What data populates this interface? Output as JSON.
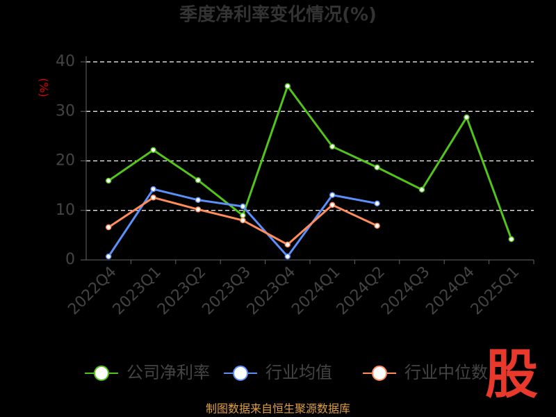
{
  "chart_data": {
    "type": "line",
    "title": "季度净利率变化情况(%)",
    "y_label": "(%)",
    "categories": [
      "2022Q4",
      "2023Q1",
      "2023Q2",
      "2023Q3",
      "2023Q4",
      "2024Q1",
      "2024Q2",
      "2024Q3",
      "2024Q4",
      "2025Q1"
    ],
    "series": [
      {
        "name": "公司净利率",
        "color": "#52c41a",
        "values": [
          16.0,
          22.2,
          16.1,
          9.0,
          35.1,
          22.9,
          18.7,
          14.2,
          28.8,
          4.2
        ]
      },
      {
        "name": "行业均值",
        "color": "#5b8ff9",
        "values": [
          0.7,
          14.3,
          12.1,
          10.8,
          0.7,
          13.1,
          11.4,
          null,
          null,
          null
        ]
      },
      {
        "name": "行业中位数",
        "color": "#ff8c5a",
        "values": [
          6.6,
          12.6,
          10.2,
          8.0,
          3.1,
          11.1,
          6.9,
          null,
          null,
          null
        ]
      }
    ],
    "ylim": [
      0,
      40
    ],
    "yticks": [
      0,
      10,
      20,
      30,
      40
    ],
    "grid": true,
    "source": "制图数据来自恒生聚源数据库",
    "logo": "股"
  }
}
